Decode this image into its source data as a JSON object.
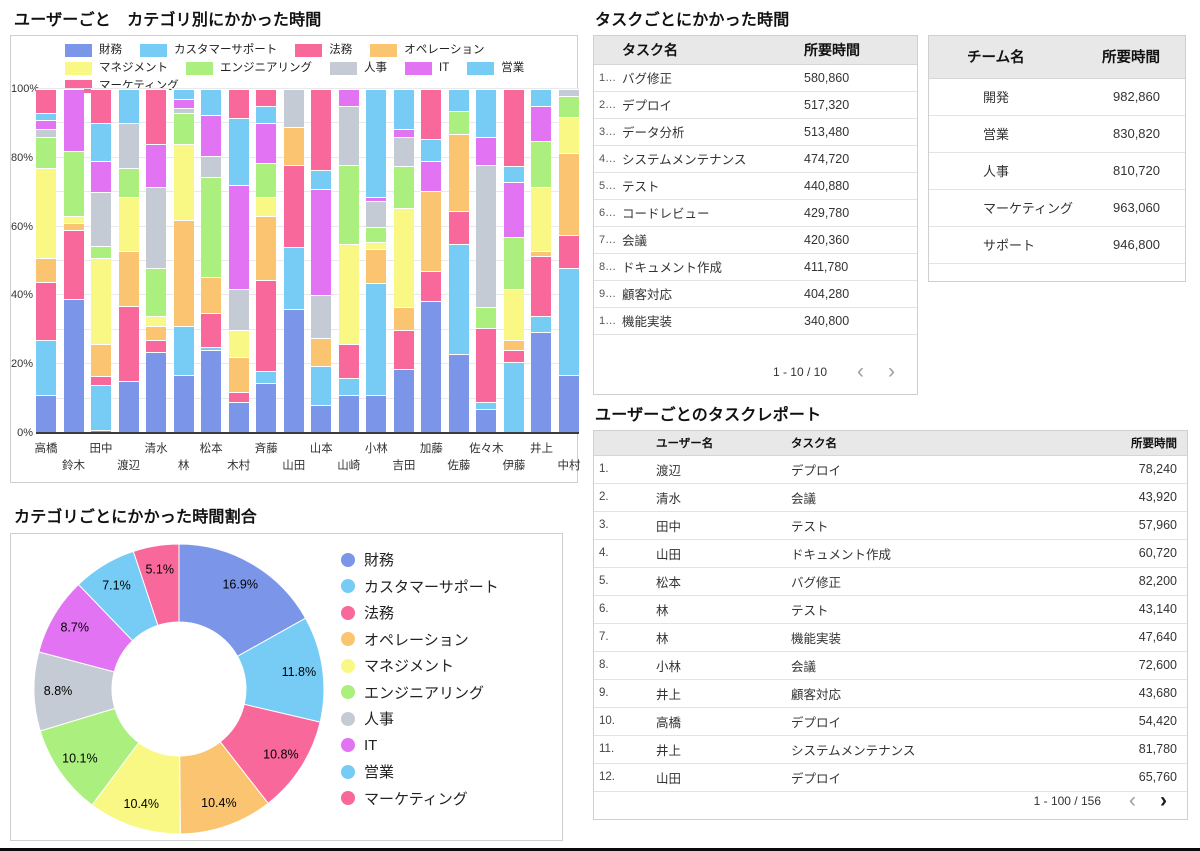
{
  "chart_data": [
    {
      "id": "user-category-stacked-bar",
      "type": "bar",
      "stacked": true,
      "percent_stacked": true,
      "title": "ユーザーごと　カテゴリ別にかかった時間",
      "y_ticks": [
        "0%",
        "20%",
        "40%",
        "60%",
        "80%",
        "100%"
      ],
      "ylim": [
        0,
        100
      ],
      "grid": true,
      "legend_position": "top",
      "categories": [
        "高橋",
        "鈴木",
        "田中",
        "渡辺",
        "清水",
        "林",
        "松本",
        "木村",
        "斉藤",
        "山田",
        "山本",
        "山崎",
        "小林",
        "吉田",
        "加藤",
        "佐藤",
        "佐々木",
        "伊藤",
        "井上",
        "中村"
      ],
      "series": [
        {
          "name": "財務",
          "color": "#7B96E8",
          "values": [
            11,
            39,
            1,
            15,
            23.5,
            17,
            24,
            9,
            14.5,
            36,
            8,
            11,
            11,
            18.5,
            38.5,
            23,
            7,
            0,
            29.5,
            17
          ]
        },
        {
          "name": "カスタマーサポート",
          "color": "#76CCF5",
          "values": [
            16,
            0,
            13,
            0,
            0,
            14,
            1,
            0,
            3.5,
            18,
            11.5,
            5,
            32.5,
            0,
            0,
            32,
            2,
            20.5,
            4.5,
            31
          ]
        },
        {
          "name": "法務",
          "color": "#F9689B",
          "values": [
            17,
            20,
            2.5,
            22,
            3.5,
            0,
            10,
            3,
            26.5,
            24,
            0,
            10,
            0,
            11.5,
            8.5,
            9.5,
            21.5,
            3.5,
            17.5,
            9.5
          ]
        },
        {
          "name": "オペレーション",
          "color": "#FAC470",
          "values": [
            7,
            2,
            9.5,
            16,
            4,
            31,
            10.5,
            10,
            18.5,
            11,
            8,
            0,
            10,
            6.5,
            23.5,
            22.5,
            0,
            3,
            1.5,
            24
          ]
        },
        {
          "name": "マネジメント",
          "color": "#FAF884",
          "values": [
            26,
            2,
            25,
            15.5,
            3,
            22,
            0,
            8,
            5.5,
            0,
            0,
            29,
            2,
            29,
            0,
            0,
            0,
            15,
            18.5,
            10.5
          ]
        },
        {
          "name": "エンジニアリング",
          "color": "#ABF07F",
          "values": [
            9,
            19,
            3.5,
            8.5,
            14,
            9,
            29,
            0,
            10,
            0,
            0,
            23,
            4.5,
            12,
            0,
            6.5,
            6,
            15,
            13.5,
            6
          ]
        },
        {
          "name": "人事",
          "color": "#C4CBD4",
          "values": [
            2.5,
            0,
            15.5,
            13,
            23.5,
            1.5,
            6,
            12,
            0,
            11,
            12.5,
            17,
            7.5,
            8.5,
            0,
            0,
            41.5,
            0,
            0,
            2
          ]
        },
        {
          "name": "IT",
          "color": "#E273F2",
          "values": [
            2.5,
            18,
            9,
            0,
            12.5,
            2.5,
            12,
            30,
            11.5,
            0,
            31,
            5,
            1,
            2.5,
            8.5,
            0,
            8,
            16,
            10,
            0
          ]
        },
        {
          "name": "営業",
          "color": "#76CCF5",
          "values": [
            2,
            0,
            11,
            10,
            0,
            3,
            7.5,
            19.5,
            5,
            0,
            5.5,
            0,
            31.5,
            11.5,
            6.5,
            6.5,
            14,
            4.5,
            5,
            0
          ]
        },
        {
          "name": "マーケティング",
          "color": "#F9689B",
          "values": [
            7,
            0,
            10,
            0,
            16,
            0,
            0,
            8.5,
            5,
            0,
            23.5,
            0,
            0,
            0,
            14.5,
            0,
            0,
            22.5,
            0,
            0
          ]
        }
      ]
    },
    {
      "id": "category-share-donut",
      "type": "pie",
      "donut": true,
      "title": "カテゴリごとにかかった時間割合",
      "legend_position": "right",
      "slices": [
        {
          "label": "財務",
          "percent": 16.9,
          "color": "#7B96E8"
        },
        {
          "label": "カスタマーサポート",
          "percent": 11.8,
          "color": "#76CCF5"
        },
        {
          "label": "法務",
          "percent": 10.8,
          "color": "#F9689B"
        },
        {
          "label": "オペレーション",
          "percent": 10.4,
          "color": "#FAC470"
        },
        {
          "label": "マネジメント",
          "percent": 10.4,
          "color": "#FAF884"
        },
        {
          "label": "エンジニアリング",
          "percent": 10.1,
          "color": "#ABF07F"
        },
        {
          "label": "人事",
          "percent": 8.8,
          "color": "#C4CBD4"
        },
        {
          "label": "IT",
          "percent": 8.7,
          "color": "#E273F2"
        },
        {
          "label": "営業",
          "percent": 7.1,
          "color": "#76CCF5"
        },
        {
          "label": "マーケティング",
          "percent": 5.1,
          "color": "#F9689B"
        }
      ]
    }
  ],
  "task_table": {
    "title": "タスクごとにかかった時間",
    "columns": {
      "name": "タスク名",
      "value": "所要時間"
    },
    "rows": [
      {
        "num": "1…",
        "name": "バグ修正",
        "value": "580,860"
      },
      {
        "num": "2…",
        "name": "デプロイ",
        "value": "517,320"
      },
      {
        "num": "3…",
        "name": "データ分析",
        "value": "513,480"
      },
      {
        "num": "4…",
        "name": "システムメンテナンス",
        "value": "474,720"
      },
      {
        "num": "5…",
        "name": "テスト",
        "value": "440,880"
      },
      {
        "num": "6…",
        "name": "コードレビュー",
        "value": "429,780"
      },
      {
        "num": "7…",
        "name": "会議",
        "value": "420,360"
      },
      {
        "num": "8…",
        "name": "ドキュメント作成",
        "value": "411,780"
      },
      {
        "num": "9…",
        "name": "顧客対応",
        "value": "404,280"
      },
      {
        "num": "1…",
        "name": "機能実装",
        "value": "340,800"
      }
    ],
    "pagination": {
      "range": "1 - 10 / 10",
      "prev_icon": "‹",
      "next_icon": "›",
      "prev_enabled": false,
      "next_enabled": false
    }
  },
  "team_table": {
    "columns": {
      "name": "チーム名",
      "value": "所要時間"
    },
    "rows": [
      {
        "name": "開発",
        "value": "982,860"
      },
      {
        "name": "営業",
        "value": "830,820"
      },
      {
        "name": "人事",
        "value": "810,720"
      },
      {
        "name": "マーケティング",
        "value": "963,060"
      },
      {
        "name": "サポート",
        "value": "946,800"
      }
    ]
  },
  "user_task_table": {
    "title": "ユーザーごとのタスクレポート",
    "columns": {
      "user": "ユーザー名",
      "task": "タスク名",
      "value": "所要時間"
    },
    "rows": [
      {
        "num": "1.",
        "user": "渡辺",
        "task": "デプロイ",
        "value": "78,240"
      },
      {
        "num": "2.",
        "user": "清水",
        "task": "会議",
        "value": "43,920"
      },
      {
        "num": "3.",
        "user": "田中",
        "task": "テスト",
        "value": "57,960"
      },
      {
        "num": "4.",
        "user": "山田",
        "task": "ドキュメント作成",
        "value": "60,720"
      },
      {
        "num": "5.",
        "user": "松本",
        "task": "バグ修正",
        "value": "82,200"
      },
      {
        "num": "6.",
        "user": "林",
        "task": "テスト",
        "value": "43,140"
      },
      {
        "num": "7.",
        "user": "林",
        "task": "機能実装",
        "value": "47,640"
      },
      {
        "num": "8.",
        "user": "小林",
        "task": "会議",
        "value": "72,600"
      },
      {
        "num": "9.",
        "user": "井上",
        "task": "顧客対応",
        "value": "43,680"
      },
      {
        "num": "10.",
        "user": "高橋",
        "task": "デプロイ",
        "value": "54,420"
      },
      {
        "num": "11.",
        "user": "井上",
        "task": "システムメンテナンス",
        "value": "81,780"
      },
      {
        "num": "12.",
        "user": "山田",
        "task": "デプロイ",
        "value": "65,760"
      }
    ],
    "pagination": {
      "range": "1 - 100 / 156",
      "prev_icon": "‹",
      "next_icon": "›",
      "prev_enabled": false,
      "next_enabled": true
    }
  }
}
